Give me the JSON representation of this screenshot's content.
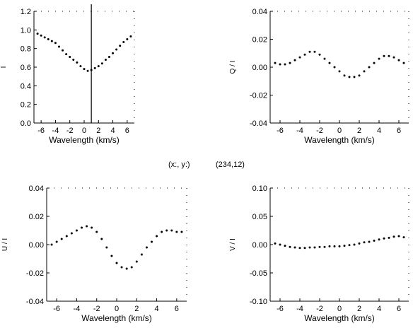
{
  "readout": {
    "label": "(x:, y:)",
    "value": "(234,12)"
  },
  "colors": {
    "ink": "#000000",
    "background": "#ffffff"
  },
  "chart_data": [
    {
      "type": "scatter",
      "panel": "top-left",
      "xlabel": "Wavelength (km/s)",
      "ylabel": "I",
      "xlim": [
        -7,
        7
      ],
      "ylim": [
        0.0,
        1.2
      ],
      "xticks": [
        -6,
        -4,
        -2,
        0,
        2,
        4,
        6
      ],
      "xtick_labels": [
        "-6",
        "-4",
        "-2",
        "0",
        "2",
        "4",
        "6"
      ],
      "yticks": [
        0.0,
        0.2,
        0.4,
        0.6,
        0.8,
        1.0,
        1.2
      ],
      "ytick_labels": [
        "0.0",
        "0.2",
        "0.4",
        "0.6",
        "0.8",
        "1.0",
        "1.2"
      ],
      "marker_line_x": 1.0,
      "x": [
        -6.5,
        -6.0,
        -5.5,
        -5.0,
        -4.5,
        -4.0,
        -3.5,
        -3.0,
        -2.5,
        -2.0,
        -1.5,
        -1.0,
        -0.5,
        0.0,
        0.5,
        1.0,
        1.5,
        2.0,
        2.5,
        3.0,
        3.5,
        4.0,
        4.5,
        5.0,
        5.5,
        6.0,
        6.5
      ],
      "y": [
        0.96,
        0.94,
        0.92,
        0.9,
        0.88,
        0.86,
        0.82,
        0.78,
        0.74,
        0.71,
        0.68,
        0.65,
        0.61,
        0.58,
        0.56,
        0.57,
        0.59,
        0.61,
        0.64,
        0.68,
        0.71,
        0.75,
        0.79,
        0.83,
        0.87,
        0.9,
        0.93
      ]
    },
    {
      "type": "scatter",
      "panel": "top-right",
      "xlabel": "Wavelength (km/s)",
      "ylabel": "Q / I",
      "xlim": [
        -7,
        7
      ],
      "ylim": [
        -0.04,
        0.04
      ],
      "xticks": [
        -6,
        -4,
        -2,
        0,
        2,
        4,
        6
      ],
      "xtick_labels": [
        "-6",
        "-4",
        "-2",
        "0",
        "2",
        "4",
        "6"
      ],
      "yticks": [
        -0.04,
        -0.02,
        0.0,
        0.02,
        0.04
      ],
      "ytick_labels": [
        "-0.04",
        "-0.02",
        "0.00",
        "0.02",
        "0.04"
      ],
      "x": [
        -6.5,
        -6.0,
        -5.5,
        -5.0,
        -4.5,
        -4.0,
        -3.5,
        -3.0,
        -2.5,
        -2.0,
        -1.5,
        -1.0,
        -0.5,
        0.0,
        0.5,
        1.0,
        1.5,
        2.0,
        2.5,
        3.0,
        3.5,
        4.0,
        4.5,
        5.0,
        5.5,
        6.0,
        6.5
      ],
      "y": [
        0.003,
        0.002,
        0.002,
        0.003,
        0.005,
        0.007,
        0.009,
        0.011,
        0.011,
        0.009,
        0.006,
        0.003,
        0.0,
        -0.003,
        -0.006,
        -0.007,
        -0.007,
        -0.006,
        -0.003,
        0.0,
        0.003,
        0.006,
        0.008,
        0.008,
        0.007,
        0.005,
        0.003
      ]
    },
    {
      "type": "scatter",
      "panel": "bottom-left",
      "xlabel": "Wavelength (km/s)",
      "ylabel": "U / I",
      "xlim": [
        -7,
        7
      ],
      "ylim": [
        -0.04,
        0.04
      ],
      "xticks": [
        -6,
        -4,
        -2,
        0,
        2,
        4,
        6
      ],
      "xtick_labels": [
        "-6",
        "-4",
        "-2",
        "0",
        "2",
        "4",
        "6"
      ],
      "yticks": [
        -0.04,
        -0.02,
        0.0,
        0.02,
        0.04
      ],
      "ytick_labels": [
        "-0.04",
        "-0.02",
        "0.00",
        "0.02",
        "0.04"
      ],
      "x": [
        -6.5,
        -6.0,
        -5.5,
        -5.0,
        -4.5,
        -4.0,
        -3.5,
        -3.0,
        -2.5,
        -2.0,
        -1.5,
        -1.0,
        -0.5,
        0.0,
        0.5,
        1.0,
        1.5,
        2.0,
        2.5,
        3.0,
        3.5,
        4.0,
        4.5,
        5.0,
        5.5,
        6.0,
        6.5
      ],
      "y": [
        0.0,
        0.002,
        0.004,
        0.006,
        0.008,
        0.01,
        0.012,
        0.013,
        0.012,
        0.009,
        0.004,
        -0.002,
        -0.008,
        -0.013,
        -0.016,
        -0.017,
        -0.016,
        -0.012,
        -0.007,
        -0.002,
        0.002,
        0.006,
        0.009,
        0.01,
        0.01,
        0.009,
        0.009
      ]
    },
    {
      "type": "scatter",
      "panel": "bottom-right",
      "xlabel": "Wavelength (km/s)",
      "ylabel": "V / I",
      "xlim": [
        -7,
        7
      ],
      "ylim": [
        -0.1,
        0.1
      ],
      "xticks": [
        -6,
        -4,
        -2,
        0,
        2,
        4,
        6
      ],
      "xtick_labels": [
        "-6",
        "-4",
        "-2",
        "0",
        "2",
        "4",
        "6"
      ],
      "yticks": [
        -0.1,
        -0.05,
        0.0,
        0.05,
        0.1
      ],
      "ytick_labels": [
        "-0.10",
        "-0.05",
        "0.00",
        "0.05",
        "0.10"
      ],
      "x": [
        -6.5,
        -6.0,
        -5.5,
        -5.0,
        -4.5,
        -4.0,
        -3.5,
        -3.0,
        -2.5,
        -2.0,
        -1.5,
        -1.0,
        -0.5,
        0.0,
        0.5,
        1.0,
        1.5,
        2.0,
        2.5,
        3.0,
        3.5,
        4.0,
        4.5,
        5.0,
        5.5,
        6.0,
        6.5
      ],
      "y": [
        0.002,
        0.0,
        -0.002,
        -0.004,
        -0.005,
        -0.006,
        -0.006,
        -0.005,
        -0.005,
        -0.004,
        -0.004,
        -0.003,
        -0.003,
        -0.003,
        -0.002,
        -0.001,
        0.0,
        0.002,
        0.004,
        0.005,
        0.007,
        0.009,
        0.011,
        0.012,
        0.014,
        0.015,
        0.013
      ]
    }
  ]
}
